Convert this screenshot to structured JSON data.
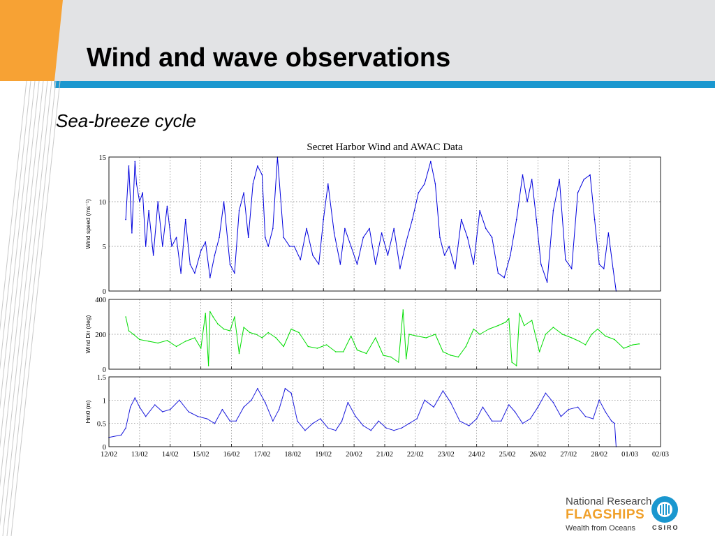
{
  "slide": {
    "title": "Wind and wave observations",
    "subtitle": "Sea-breeze cycle"
  },
  "colors": {
    "accent_orange": "#f7a234",
    "header_gray": "#e2e3e5",
    "rule_blue": "#1a97cf",
    "wind_speed": "#0000dd",
    "wind_dir": "#00dd00",
    "wave_height": "#1c1cdc"
  },
  "logo": {
    "line1": "National Research",
    "line2": "FLAGSHIPS",
    "line3": "Wealth from Oceans",
    "org": "CSIRO"
  },
  "chart_data": [
    {
      "type": "line",
      "title": "Secret Harbor Wind and AWAC Data",
      "xlabel": "",
      "ylabel": "Wind speed (ms⁻¹)",
      "ylim": [
        0,
        15
      ],
      "yticks": [
        "0",
        "5",
        "10",
        "15"
      ],
      "xlim": [
        12.0,
        30.0
      ],
      "grid": true,
      "series": [
        {
          "color": "#0000dd",
          "x": [
            12.55,
            12.65,
            12.75,
            12.85,
            12.9,
            13.0,
            13.1,
            13.2,
            13.3,
            13.45,
            13.6,
            13.75,
            13.9,
            14.05,
            14.2,
            14.35,
            14.5,
            14.65,
            14.8,
            15.0,
            15.15,
            15.3,
            15.45,
            15.6,
            15.75,
            15.95,
            16.1,
            16.25,
            16.4,
            16.55,
            16.7,
            16.85,
            17.0,
            17.1,
            17.2,
            17.35,
            17.5,
            17.7,
            17.9,
            18.05,
            18.25,
            18.45,
            18.65,
            18.85,
            19.0,
            19.15,
            19.35,
            19.55,
            19.7,
            19.9,
            20.1,
            20.3,
            20.5,
            20.7,
            20.9,
            21.1,
            21.3,
            21.5,
            21.7,
            21.9,
            22.1,
            22.3,
            22.5,
            22.65,
            22.8,
            22.95,
            23.1,
            23.3,
            23.5,
            23.7,
            23.9,
            24.1,
            24.3,
            24.5,
            24.7,
            24.9,
            25.1,
            25.3,
            25.5,
            25.65,
            25.8,
            25.95,
            26.1,
            26.3,
            26.5,
            26.7,
            26.9,
            27.1,
            27.3,
            27.5,
            27.7,
            27.85,
            28.0,
            28.15,
            28.3,
            28.45,
            28.55
          ],
          "y": [
            8,
            14,
            6.5,
            14.5,
            12,
            10,
            11,
            5,
            9,
            4,
            10,
            5,
            9.5,
            5,
            6,
            2,
            8,
            3,
            2,
            4.5,
            5.5,
            1.5,
            4,
            6,
            10,
            3,
            2,
            9,
            11,
            6,
            12,
            14,
            13,
            6,
            5,
            7,
            15,
            6,
            5,
            5,
            3.5,
            7,
            4,
            3,
            8,
            12,
            6.5,
            3,
            7,
            5,
            3,
            6,
            7,
            3,
            6.5,
            4,
            7,
            2.5,
            5.5,
            8,
            11,
            12,
            14.5,
            12,
            6,
            4,
            5,
            2.5,
            8,
            6,
            3,
            9,
            7,
            6,
            2,
            1.5,
            4,
            8,
            13,
            10,
            12.5,
            8,
            3,
            1,
            9,
            12.5,
            3.5,
            2.5,
            11,
            12.5,
            13,
            8,
            3,
            2.5,
            6.5,
            2.5,
            0
          ]
        }
      ]
    },
    {
      "type": "line",
      "title": "",
      "xlabel": "",
      "ylabel": "Wind Dir (deg)",
      "ylim": [
        0,
        400
      ],
      "yticks": [
        "0",
        "200",
        "400"
      ],
      "xlim": [
        12.0,
        30.0
      ],
      "grid": true,
      "series": [
        {
          "color": "#00dd00",
          "x": [
            12.55,
            12.65,
            12.8,
            13.0,
            13.3,
            13.6,
            13.9,
            14.2,
            14.5,
            14.8,
            15.0,
            15.15,
            15.25,
            15.3,
            15.4,
            15.55,
            15.75,
            15.95,
            16.1,
            16.25,
            16.4,
            16.6,
            16.8,
            17.0,
            17.2,
            17.45,
            17.7,
            17.95,
            18.2,
            18.5,
            18.8,
            19.1,
            19.4,
            19.65,
            19.9,
            20.1,
            20.4,
            20.7,
            20.95,
            21.2,
            21.45,
            21.6,
            21.7,
            21.8,
            22.05,
            22.35,
            22.65,
            22.9,
            23.15,
            23.4,
            23.65,
            23.9,
            24.1,
            24.4,
            24.7,
            24.95,
            25.05,
            25.15,
            25.3,
            25.4,
            25.55,
            25.8,
            26.05,
            26.25,
            26.5,
            26.8,
            27.1,
            27.35,
            27.55,
            27.75,
            27.95,
            28.2,
            28.5,
            28.8,
            29.1,
            29.3
          ],
          "y": [
            300,
            220,
            200,
            170,
            160,
            150,
            165,
            130,
            160,
            180,
            120,
            320,
            20,
            330,
            300,
            260,
            230,
            220,
            300,
            90,
            240,
            210,
            200,
            180,
            210,
            180,
            130,
            230,
            210,
            130,
            120,
            140,
            100,
            100,
            190,
            110,
            90,
            180,
            80,
            70,
            40,
            340,
            60,
            200,
            190,
            180,
            200,
            100,
            80,
            70,
            130,
            230,
            200,
            230,
            250,
            270,
            290,
            40,
            20,
            320,
            250,
            280,
            100,
            200,
            240,
            200,
            180,
            160,
            140,
            200,
            230,
            190,
            170,
            120,
            140,
            145
          ]
        }
      ]
    },
    {
      "type": "line",
      "title": "",
      "xlabel": "",
      "ylabel": "Hm0 (m)",
      "ylim": [
        0,
        1.5
      ],
      "yticks": [
        "0",
        "0.5",
        "1",
        "1.5"
      ],
      "xlim": [
        12.0,
        30.0
      ],
      "xticks": [
        "12/02",
        "13/02",
        "14/02",
        "15/02",
        "16/02",
        "17/02",
        "18/02",
        "19/02",
        "20/02",
        "21/02",
        "22/02",
        "23/02",
        "24/02",
        "25/02",
        "26/02",
        "27/02",
        "28/02",
        "01/03",
        "02/03"
      ],
      "grid": true,
      "series": [
        {
          "color": "#1c1cdc",
          "x": [
            12.0,
            12.4,
            12.55,
            12.7,
            12.85,
            13.0,
            13.2,
            13.5,
            13.75,
            14.0,
            14.3,
            14.6,
            14.9,
            15.2,
            15.45,
            15.7,
            15.95,
            16.15,
            16.4,
            16.65,
            16.85,
            17.1,
            17.35,
            17.55,
            17.75,
            17.95,
            18.15,
            18.4,
            18.65,
            18.9,
            19.15,
            19.4,
            19.6,
            19.8,
            20.05,
            20.3,
            20.55,
            20.8,
            21.05,
            21.3,
            21.55,
            21.8,
            22.05,
            22.3,
            22.6,
            22.9,
            23.15,
            23.45,
            23.75,
            24.0,
            24.2,
            24.5,
            24.8,
            25.05,
            25.25,
            25.5,
            25.75,
            26.0,
            26.25,
            26.5,
            26.75,
            27.0,
            27.3,
            27.55,
            27.8,
            28.0,
            28.2,
            28.4,
            28.5,
            28.55
          ],
          "y": [
            0.2,
            0.25,
            0.4,
            0.85,
            1.05,
            0.85,
            0.65,
            0.9,
            0.75,
            0.8,
            1.0,
            0.75,
            0.65,
            0.6,
            0.5,
            0.8,
            0.55,
            0.55,
            0.85,
            1.0,
            1.25,
            0.95,
            0.55,
            0.8,
            1.25,
            1.15,
            0.55,
            0.35,
            0.5,
            0.6,
            0.4,
            0.35,
            0.55,
            0.95,
            0.65,
            0.45,
            0.35,
            0.55,
            0.4,
            0.35,
            0.4,
            0.5,
            0.6,
            1.0,
            0.85,
            1.2,
            0.95,
            0.55,
            0.45,
            0.6,
            0.85,
            0.55,
            0.55,
            0.9,
            0.75,
            0.5,
            0.6,
            0.85,
            1.15,
            0.95,
            0.65,
            0.8,
            0.85,
            0.65,
            0.6,
            1.0,
            0.75,
            0.55,
            0.5,
            0.0
          ]
        }
      ]
    }
  ]
}
